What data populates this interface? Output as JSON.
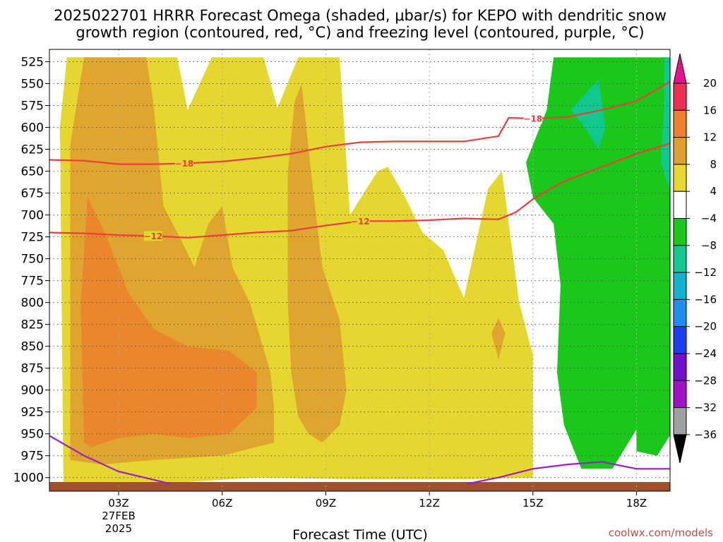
{
  "title_line1": "2025022701 HRRR Forecast Omega (shaded, μbar/s) for KEPO with dendritic snow",
  "title_line2": "growth region (contoured, red, °C) and freezing level (contoured, purple, °C)",
  "credit": "coolwx.com/models",
  "chart_data": {
    "type": "heatmap",
    "title": "2025022701 HRRR Forecast Omega (shaded, μbar/s) for KEPO with dendritic snow growth region (contoured, red, °C) and freezing level (contoured, purple, °C)",
    "xlabel": "Forecast Time (UTC)",
    "ylabel": "",
    "x_range_hours_utc": [
      0.9,
      19.0
    ],
    "y_range_hpa": [
      1010,
      515
    ],
    "y_ticks": [
      525,
      550,
      575,
      600,
      625,
      650,
      675,
      700,
      725,
      750,
      775,
      800,
      825,
      850,
      875,
      900,
      925,
      950,
      975,
      1000
    ],
    "x_ticks": [
      {
        "hour": 3,
        "label": "03Z",
        "date": "27FEB",
        "year": "2025"
      },
      {
        "hour": 6,
        "label": "06Z"
      },
      {
        "hour": 9,
        "label": "09Z"
      },
      {
        "hour": 12,
        "label": "12Z"
      },
      {
        "hour": 15,
        "label": "15Z"
      },
      {
        "hour": 18,
        "label": "18Z"
      }
    ],
    "grid": true,
    "colorbar": {
      "labels": [
        "20",
        "16",
        "12",
        "8",
        "4",
        "-4",
        "-8",
        "-12",
        "-16",
        "-20",
        "-24",
        "-28",
        "-32",
        "-36"
      ],
      "colors": [
        "#f03050",
        "#f08030",
        "#e0a030",
        "#e8d830",
        "#ffffff",
        "#19c819",
        "#10c890",
        "#10b4d0",
        "#1e8cf0",
        "#1e3cf0",
        "#7010d0",
        "#a010c8",
        "#a0a0a0"
      ],
      "top_arrow_color": "#e8108c",
      "bottom_arrow_color": "#000000"
    },
    "shaded_regions": [
      {
        "level": "4 to 8",
        "color": "#e6d630",
        "points": [
          [
            1.4,
            1005
          ],
          [
            1.3,
            600
          ],
          [
            1.5,
            520
          ],
          [
            4.7,
            520
          ],
          [
            5.0,
            580
          ],
          [
            5.7,
            520
          ],
          [
            7.2,
            520
          ],
          [
            7.6,
            578
          ],
          [
            8.2,
            520
          ],
          [
            9.4,
            520
          ],
          [
            9.7,
            700
          ],
          [
            10.5,
            650
          ],
          [
            10.8,
            645
          ],
          [
            11.3,
            680
          ],
          [
            11.8,
            720
          ],
          [
            12.4,
            740
          ],
          [
            13.0,
            795
          ],
          [
            13.7,
            670
          ],
          [
            14.1,
            650
          ],
          [
            14.4,
            740
          ],
          [
            14.6,
            800
          ],
          [
            15.0,
            860
          ],
          [
            15.0,
            890
          ],
          [
            15.0,
            1000
          ],
          [
            13.0,
            1002
          ],
          [
            10.0,
            1002
          ],
          [
            7.0,
            1000
          ],
          [
            5.0,
            1005
          ],
          [
            3.0,
            1005
          ]
        ]
      },
      {
        "level": "4 to 8 (right)",
        "color": "#e6d630",
        "points": [
          [
            18.1,
            815
          ],
          [
            18.3,
            790
          ],
          [
            18.9,
            765
          ],
          [
            19.0,
            755
          ],
          [
            19.0,
            920
          ],
          [
            18.8,
            880
          ],
          [
            18.3,
            850
          ]
        ]
      },
      {
        "level": "8 to 12",
        "color": "#e0a52e",
        "points": [
          [
            1.6,
            980
          ],
          [
            1.6,
            620
          ],
          [
            2.0,
            520
          ],
          [
            3.8,
            520
          ],
          [
            4.0,
            570
          ],
          [
            4.3,
            690
          ],
          [
            4.7,
            720
          ],
          [
            5.2,
            760
          ],
          [
            5.6,
            710
          ],
          [
            6.0,
            690
          ],
          [
            6.3,
            760
          ],
          [
            6.8,
            800
          ],
          [
            7.4,
            880
          ],
          [
            7.5,
            920
          ],
          [
            7.5,
            960
          ],
          [
            6.0,
            975
          ],
          [
            4.0,
            980
          ],
          [
            2.5,
            985
          ]
        ]
      },
      {
        "level": "8 to 12 (b)",
        "color": "#e0a52e",
        "points": [
          [
            7.9,
            650
          ],
          [
            8.1,
            570
          ],
          [
            8.3,
            550
          ],
          [
            8.6,
            660
          ],
          [
            8.9,
            760
          ],
          [
            9.4,
            820
          ],
          [
            9.6,
            900
          ],
          [
            9.4,
            940
          ],
          [
            8.9,
            960
          ],
          [
            8.5,
            950
          ],
          [
            8.2,
            930
          ],
          [
            8.0,
            880
          ],
          [
            7.9,
            800
          ]
        ]
      },
      {
        "level": "8 to 12 (c)",
        "color": "#e0a52e",
        "points": [
          [
            13.8,
            835
          ],
          [
            14.0,
            818
          ],
          [
            14.2,
            835
          ],
          [
            14.0,
            865
          ]
        ]
      },
      {
        "level": "12 to 16",
        "color": "#ec862c",
        "points": [
          [
            2.0,
            960
          ],
          [
            1.9,
            800
          ],
          [
            2.1,
            680
          ],
          [
            2.6,
            720
          ],
          [
            3.3,
            790
          ],
          [
            4.0,
            830
          ],
          [
            5.0,
            850
          ],
          [
            6.2,
            855
          ],
          [
            7.0,
            880
          ],
          [
            7.0,
            920
          ],
          [
            6.2,
            950
          ],
          [
            5.0,
            955
          ],
          [
            4.0,
            950
          ],
          [
            3.0,
            955
          ],
          [
            2.2,
            965
          ]
        ]
      },
      {
        "level": "-4 to -8",
        "color": "#19c819",
        "points": [
          [
            15.6,
            520
          ],
          [
            18.9,
            520
          ],
          [
            19.0,
            700
          ],
          [
            19.0,
            950
          ],
          [
            18.6,
            975
          ],
          [
            18.0,
            970
          ],
          [
            18.0,
            945
          ],
          [
            17.3,
            990
          ],
          [
            16.4,
            990
          ],
          [
            15.9,
            940
          ],
          [
            15.7,
            880
          ],
          [
            15.8,
            780
          ],
          [
            15.6,
            710
          ],
          [
            15.0,
            680
          ],
          [
            14.8,
            640
          ],
          [
            15.0,
            620
          ],
          [
            15.4,
            580
          ]
        ]
      },
      {
        "level": "-8 to -12",
        "color": "#10c890",
        "points": [
          [
            16.1,
            580
          ],
          [
            16.9,
            545
          ],
          [
            17.1,
            600
          ],
          [
            16.9,
            625
          ],
          [
            16.5,
            600
          ]
        ]
      },
      {
        "level": "-8 to -12 (b)",
        "color": "#10c890",
        "points": [
          [
            18.8,
            520
          ],
          [
            19.0,
            520
          ],
          [
            19.0,
            675
          ],
          [
            18.7,
            640
          ],
          [
            18.8,
            580
          ]
        ]
      }
    ],
    "series": [
      {
        "name": "",
        "contour_label": "-18",
        "color": "#f03c3c",
        "x": [
          0.9,
          2.0,
          3.0,
          4.0,
          5.0,
          6.0,
          7.0,
          8.0,
          9.0,
          10.0,
          11.0,
          12.0,
          13.0,
          14.0,
          14.3,
          15.0,
          16.0,
          17.0,
          18.0,
          19.0
        ],
        "y": [
          637,
          638,
          642,
          642,
          641,
          639,
          635,
          630,
          622,
          617,
          616,
          616,
          616,
          610,
          589,
          590,
          588,
          580,
          570,
          547
        ]
      },
      {
        "name": "",
        "contour_label": "-12",
        "color": "#f03c3c",
        "x": [
          0.9,
          2.0,
          3.0,
          4.0,
          5.0,
          6.0,
          7.0,
          8.0,
          9.0,
          10.0,
          11.0,
          12.0,
          13.0,
          14.0,
          14.5,
          15.0,
          15.5,
          16.0,
          17.0,
          18.0,
          19.0
        ],
        "y": [
          720,
          721,
          723,
          724,
          726,
          723,
          720,
          718,
          712,
          707,
          707,
          706,
          704,
          705,
          697,
          682,
          670,
          660,
          645,
          630,
          618
        ]
      },
      {
        "name": "",
        "contour_label": "",
        "color": "#9b1ec8",
        "x": [
          0.9,
          2.0,
          3.0,
          4.5
        ],
        "y": [
          950,
          975,
          993,
          1007
        ]
      },
      {
        "name": "",
        "contour_label": "",
        "color": "#9b1ec8",
        "x": [
          13.1,
          14.0,
          15.0,
          16.0,
          17.0,
          18.0,
          19.0
        ],
        "y": [
          1007,
          1000,
          990,
          985,
          982,
          990,
          990
        ]
      }
    ],
    "ground": {
      "color": "#a0522d"
    }
  }
}
